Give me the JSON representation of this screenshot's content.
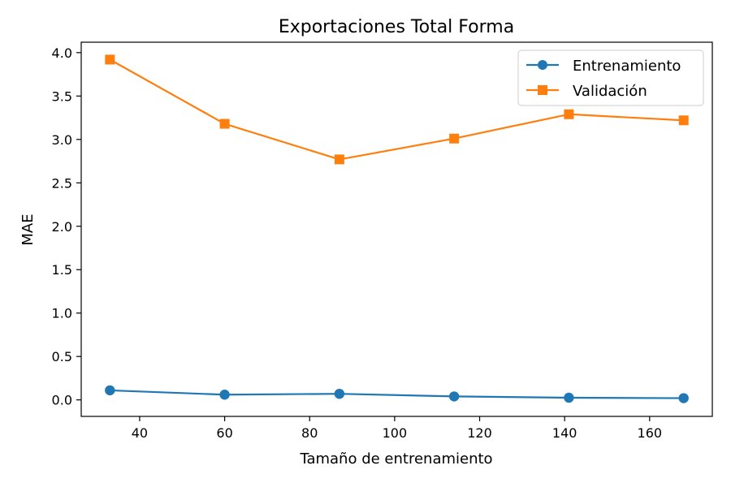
{
  "chart_data": {
    "type": "line",
    "title": "Exportaciones Total Forma",
    "xlabel": "Tamaño de entrenamiento",
    "ylabel": "MAE",
    "x": [
      33,
      60,
      87,
      114,
      141,
      168
    ],
    "xlim": [
      26.25,
      174.75
    ],
    "ylim": [
      -0.19,
      4.12
    ],
    "xticks": [
      40,
      60,
      80,
      100,
      120,
      140,
      160
    ],
    "yticks": [
      0.0,
      0.5,
      1.0,
      1.5,
      2.0,
      2.5,
      3.0,
      3.5,
      4.0
    ],
    "xtick_labels": [
      "40",
      "60",
      "80",
      "100",
      "120",
      "140",
      "160"
    ],
    "ytick_labels": [
      "0.0",
      "0.5",
      "1.0",
      "1.5",
      "2.0",
      "2.5",
      "3.0",
      "3.5",
      "4.0"
    ],
    "grid": false,
    "legend_position": "top-right",
    "series": [
      {
        "name": "Entrenamiento",
        "values": [
          0.11,
          0.06,
          0.07,
          0.04,
          0.025,
          0.02
        ],
        "color": "#1f77b4",
        "marker": "circle"
      },
      {
        "name": "Validación",
        "values": [
          3.92,
          3.18,
          2.77,
          3.01,
          3.29,
          3.22
        ],
        "color": "#ff7f0e",
        "marker": "square"
      }
    ]
  }
}
